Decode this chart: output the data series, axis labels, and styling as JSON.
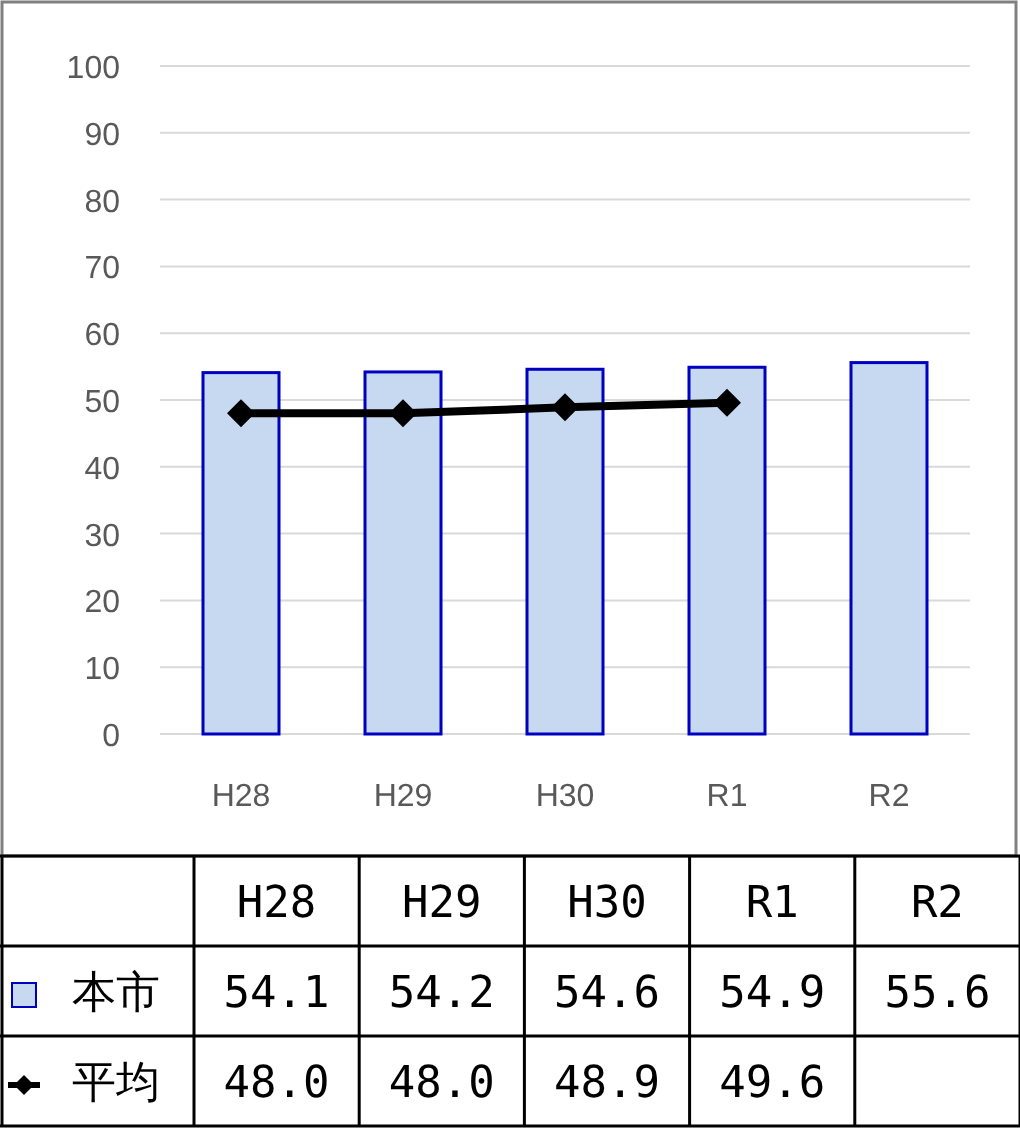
{
  "chart_data": {
    "type": "bar",
    "categories": [
      "H28",
      "H29",
      "H30",
      "R1",
      "R2"
    ],
    "series": [
      {
        "name": "本市",
        "color": "#c6d9f1",
        "values": [
          54.1,
          54.2,
          54.6,
          54.9,
          55.6
        ],
        "value_labels": [
          "54.1",
          "54.2",
          "54.6",
          "54.9",
          "55.6"
        ]
      },
      {
        "name": "平均",
        "type": "line",
        "color": "#000000",
        "marker": "diamond",
        "values": [
          48.0,
          48.0,
          48.9,
          49.6,
          null
        ],
        "value_labels": [
          "48.0",
          "48.0",
          "48.9",
          "49.6",
          null
        ]
      }
    ],
    "ylim": [
      0,
      100
    ],
    "yticks": [
      0,
      10,
      20,
      30,
      40,
      50,
      60,
      70,
      80,
      90,
      100
    ],
    "grid": "y",
    "legend": "bottom left"
  }
}
